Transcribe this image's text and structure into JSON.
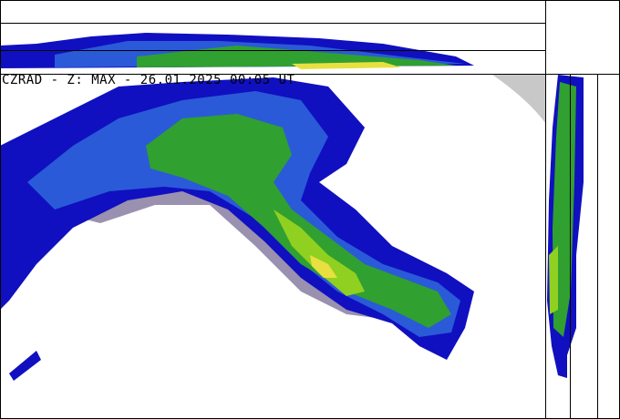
{
  "title": "CZRAD - Z: MAX - 26.01.2025 00:05 UT",
  "colors": {
    "weak": "#1010c0",
    "light": "#2a5ad8",
    "moderate": "#30a030",
    "strong": "#90d020",
    "intense": "#e8e040",
    "clutter": "#9a90b0",
    "outside_range": "#c8c8c8",
    "frame": "#000000"
  }
}
